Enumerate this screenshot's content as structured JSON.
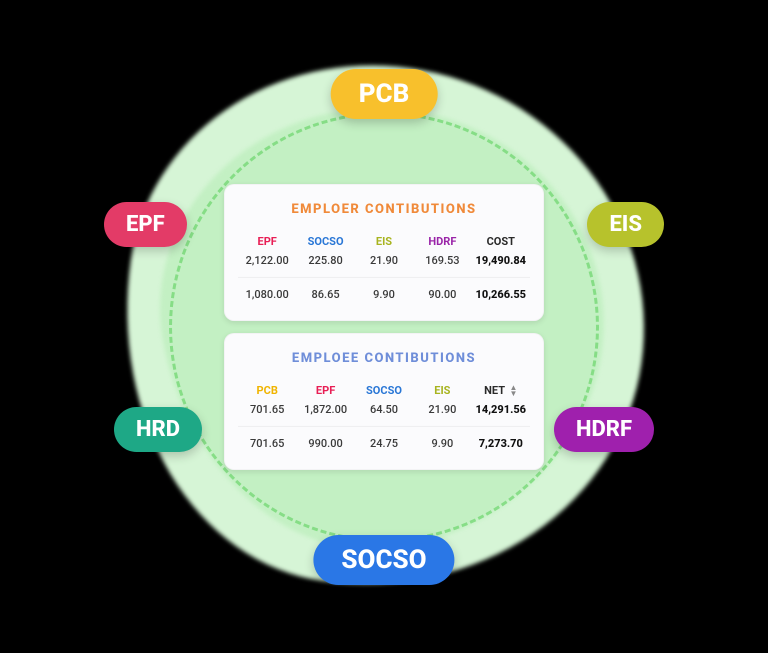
{
  "colors": {
    "background": "#000000",
    "blob_outer": "#d6f5d6",
    "blob_inner": "#c3f0c3",
    "dashed_ring": "#6dd66d",
    "card_bg": "#fbfbfd",
    "pill_pcb": "#f8c02c",
    "pill_socso": "#2a77e6",
    "pill_epf": "#e33b67",
    "pill_eis": "#b7c22c",
    "pill_hrd": "#1ea886",
    "pill_hdrf": "#9f20ad",
    "col_epf": "#e81e55",
    "col_socso": "#2a77d6",
    "col_eis": "#a8b420",
    "col_hdrf": "#9a24a8",
    "col_pcb": "#f0b400",
    "text_dark": "#2a2a2a",
    "title_orange": "#f08a3a",
    "title_blue": "#6f8ed9"
  },
  "pills": {
    "pcb": "PCB",
    "epf": "EPF",
    "eis": "EIS",
    "hrd": "HRD",
    "hdrf": "HDRF",
    "socso": "SOCSO"
  },
  "employer": {
    "title": "EMPLOER CONTIBUTIONS",
    "headers": {
      "epf": "EPF",
      "socso": "SOCSO",
      "eis": "EIS",
      "hdrf": "HDRF",
      "cost": "COST"
    },
    "rows": [
      {
        "epf": "2,122.00",
        "socso": "225.80",
        "eis": "21.90",
        "hdrf": "169.53",
        "cost": "19,490.84"
      },
      {
        "epf": "1,080.00",
        "socso": "86.65",
        "eis": "9.90",
        "hdrf": "90.00",
        "cost": "10,266.55"
      }
    ]
  },
  "employee": {
    "title": "EMPLOEE CONTIBUTIONS",
    "headers": {
      "pcb": "PCB",
      "epf": "EPF",
      "socso": "SOCSO",
      "eis": "EIS",
      "net": "NET"
    },
    "rows": [
      {
        "pcb": "701.65",
        "epf": "1,872.00",
        "socso": "64.50",
        "eis": "21.90",
        "net": "14,291.56"
      },
      {
        "pcb": "701.65",
        "epf": "990.00",
        "socso": "24.75",
        "eis": "9.90",
        "net": "7,273.70"
      }
    ]
  }
}
